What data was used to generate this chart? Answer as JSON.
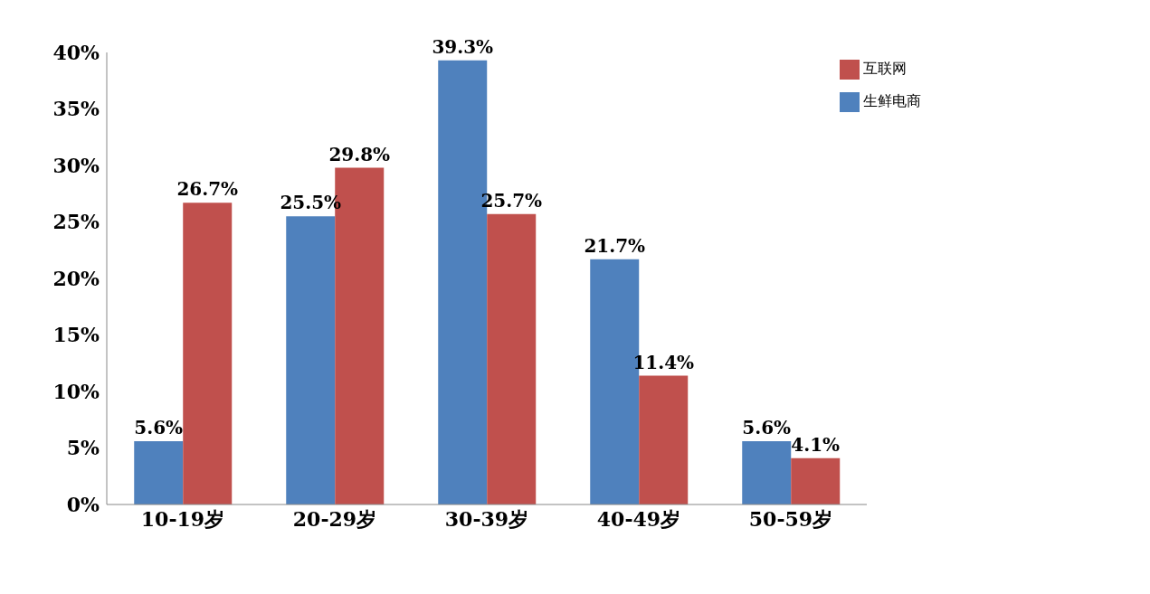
{
  "chart_data": {
    "type": "bar",
    "categories": [
      "10-19岁",
      "20-29岁",
      "30-39岁",
      "40-49岁",
      "50-59岁"
    ],
    "series": [
      {
        "name": "生鲜电商",
        "color": "#4f81bd",
        "values": [
          5.6,
          25.5,
          39.3,
          21.7,
          5.6
        ],
        "value_labels": [
          "5.6%",
          "25.5%",
          "39.3%",
          "21.7%",
          "5.6%"
        ]
      },
      {
        "name": "互联网",
        "color": "#c0504d",
        "values": [
          26.7,
          29.8,
          25.7,
          11.4,
          4.1
        ],
        "value_labels": [
          "26.7%",
          "29.8%",
          "25.7%",
          "11.4%",
          "4.1%"
        ]
      }
    ],
    "ylim": [
      0,
      40
    ],
    "yticks": [
      {
        "value": 0,
        "label": "0%"
      },
      {
        "value": 5,
        "label": "5%"
      },
      {
        "value": 10,
        "label": "10%"
      },
      {
        "value": 15,
        "label": "15%"
      },
      {
        "value": 20,
        "label": "20%"
      },
      {
        "value": 25,
        "label": "25%"
      },
      {
        "value": 30,
        "label": "30%"
      },
      {
        "value": 35,
        "label": "35%"
      },
      {
        "value": 40,
        "label": "40%"
      }
    ],
    "grid": false,
    "legend": "top right"
  }
}
